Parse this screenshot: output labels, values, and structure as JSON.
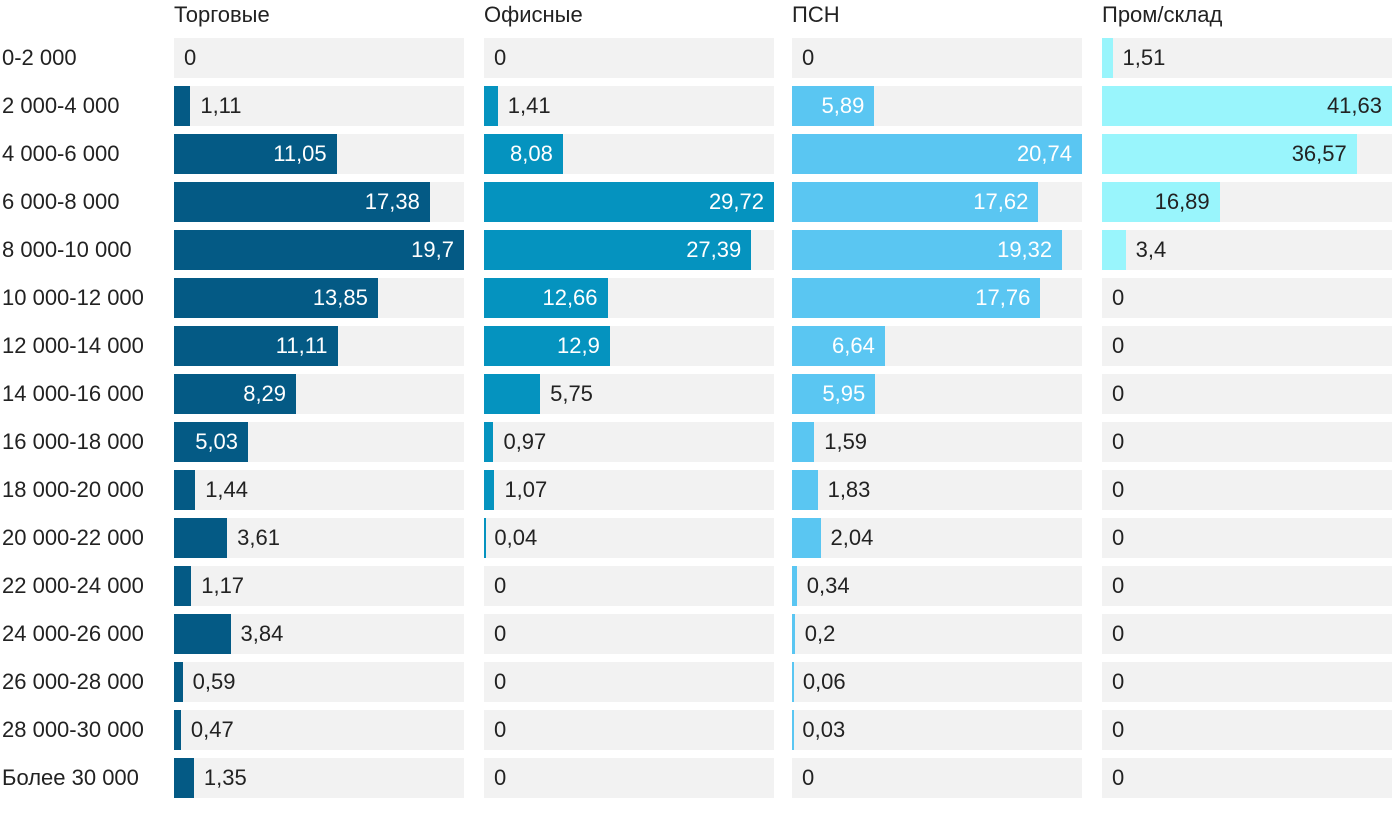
{
  "chart_data": {
    "type": "bar",
    "orientation": "horizontal",
    "layout": "small-multiples",
    "grid": false,
    "legend": "none",
    "categories": [
      "0-2 000",
      "2 000-4 000",
      "4 000-6 000",
      "6 000-8 000",
      "8 000-10 000",
      "10 000-12 000",
      "12 000-14 000",
      "14 000-16 000",
      "16 000-18 000",
      "18 000-20 000",
      "20 000-22 000",
      "22 000-24 000",
      "24 000-26 000",
      "26 000-28 000",
      "28 000-30 000",
      "Более 30 000"
    ],
    "series": [
      {
        "name": "Торговые",
        "color": "#045a85",
        "max": 19.7,
        "values": [
          0,
          1.11,
          11.05,
          17.38,
          19.7,
          13.85,
          11.11,
          8.29,
          5.03,
          1.44,
          3.61,
          1.17,
          3.84,
          0.59,
          0.47,
          1.35
        ],
        "labels": [
          "0",
          "1,11",
          "11,05",
          "17,38",
          "19,7",
          "13,85",
          "11,11",
          "8,29",
          "5,03",
          "1,44",
          "3,61",
          "1,17",
          "3,84",
          "0,59",
          "0,47",
          "1,35"
        ]
      },
      {
        "name": "Офисные",
        "color": "#0593bf",
        "max": 29.72,
        "values": [
          0,
          1.41,
          8.08,
          29.72,
          27.39,
          12.66,
          12.9,
          5.75,
          0.97,
          1.07,
          0.04,
          0,
          0,
          0,
          0,
          0
        ],
        "labels": [
          "0",
          "1,41",
          "8,08",
          "29,72",
          "27,39",
          "12,66",
          "12,9",
          "5,75",
          "0,97",
          "1,07",
          "0,04",
          "0",
          "0",
          "0",
          "0",
          "0"
        ]
      },
      {
        "name": "ПСН",
        "color": "#5ac6f2",
        "max": 20.74,
        "values": [
          0,
          5.89,
          20.74,
          17.62,
          19.32,
          17.76,
          6.64,
          5.95,
          1.59,
          1.83,
          2.04,
          0.34,
          0.2,
          0.06,
          0.03,
          0
        ],
        "labels": [
          "0",
          "5,89",
          "20,74",
          "17,62",
          "19,32",
          "17,76",
          "6,64",
          "5,95",
          "1,59",
          "1,83",
          "2,04",
          "0,34",
          "0,2",
          "0,06",
          "0,03",
          "0"
        ]
      },
      {
        "name": "Пром/склад",
        "color": "#99f5fc",
        "max": 41.63,
        "values": [
          1.51,
          41.63,
          36.57,
          16.89,
          3.4,
          0,
          0,
          0,
          0,
          0,
          0,
          0,
          0,
          0,
          0,
          0
        ],
        "labels": [
          "1,51",
          "41,63",
          "36,57",
          "16,89",
          "3,4",
          "0",
          "0",
          "0",
          "0",
          "0",
          "0",
          "0",
          "0",
          "0",
          "0",
          "0"
        ]
      }
    ]
  }
}
